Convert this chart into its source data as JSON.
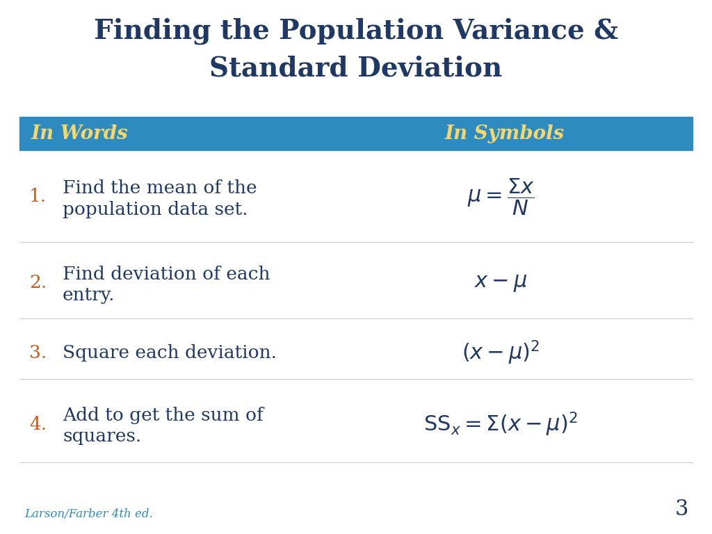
{
  "title_line1": "Finding the Population Variance &",
  "title_line2": "Standard Deviation",
  "title_color": "#1F3864",
  "title_fontsize": 28,
  "header_bg_color": "#2E8BC0",
  "header_text_color": "#F5D76E",
  "header_words": "In Words",
  "header_symbols": "In Symbols",
  "orange_color": "#C85A17",
  "dark_blue": "#1F3864",
  "background_color": "#FFFFFF",
  "footer_text": "Larson/Farber 4th ed.",
  "footer_color": "#2E8BC0",
  "page_number": "3",
  "items": [
    {
      "number": "1.",
      "words_line1": "Find the mean of the",
      "words_line2": "population data set.",
      "symbol_latex": "$\\mu = \\dfrac{\\Sigma x}{N}$",
      "sym_fontsize": 22
    },
    {
      "number": "2.",
      "words_line1": "Find deviation of each",
      "words_line2": "entry.",
      "symbol_latex": "$x - \\mu$",
      "sym_fontsize": 22
    },
    {
      "number": "3.",
      "words_line1": "Square each deviation.",
      "words_line2": "",
      "symbol_latex": "$(x - \\mu)^2$",
      "sym_fontsize": 22
    },
    {
      "number": "4.",
      "words_line1": "Add to get the sum of",
      "words_line2": "squares.",
      "symbol_latex": "$\\mathrm{SS}_{x} = \\Sigma(x - \\mu)^2$",
      "sym_fontsize": 22
    }
  ]
}
